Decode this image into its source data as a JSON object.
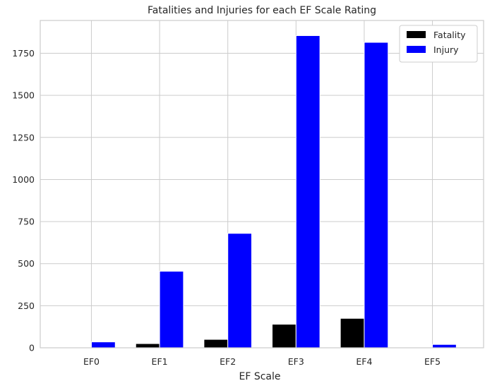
{
  "chart_data": {
    "type": "bar",
    "title": "Fatalities and Injuries for each EF Scale Rating",
    "xlabel": "EF Scale",
    "ylabel": "",
    "categories": [
      "EF0",
      "EF1",
      "EF2",
      "EF3",
      "EF4",
      "EF5"
    ],
    "series": [
      {
        "name": "Fatality",
        "color": "#000000",
        "values": [
          0,
          25,
          50,
          140,
          175,
          0
        ]
      },
      {
        "name": "Injury",
        "color": "#0000ff",
        "values": [
          35,
          455,
          680,
          1855,
          1815,
          20
        ]
      }
    ],
    "ylim": [
      0,
      1945
    ],
    "yticks": [
      0,
      250,
      500,
      750,
      1000,
      1250,
      1500,
      1750
    ],
    "grid": true,
    "legend_position": "top-right"
  }
}
